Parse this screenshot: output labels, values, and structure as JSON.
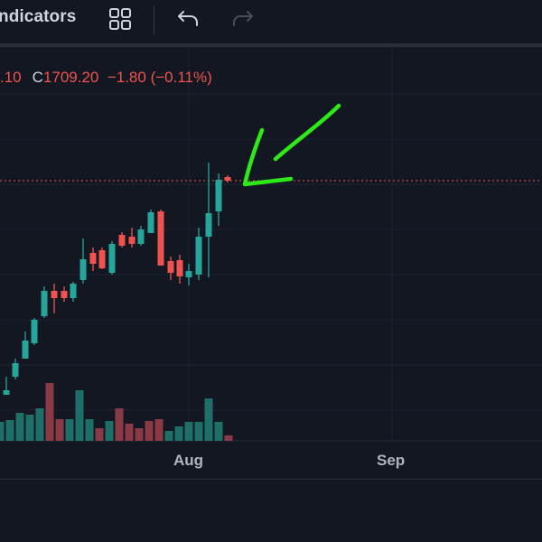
{
  "toolbar": {
    "indicators_label": "ndicators",
    "layout_icon": "grid-2x2-icon",
    "undo_icon": "undo-icon",
    "redo_icon": "redo-icon"
  },
  "ohlc": {
    "partial_value": ".10",
    "close_label": "C",
    "close_value": "1709.20",
    "change": "−1.80 (−0.11%)"
  },
  "time_axis": [
    "Aug",
    "Sep"
  ],
  "colors": {
    "up": "#26a69a",
    "down": "#ef5350",
    "background": "#131722",
    "annotation": "#2ee81a"
  },
  "annotation": {
    "shape": "hand-drawn-arrow",
    "points_to": "last-candle"
  }
}
